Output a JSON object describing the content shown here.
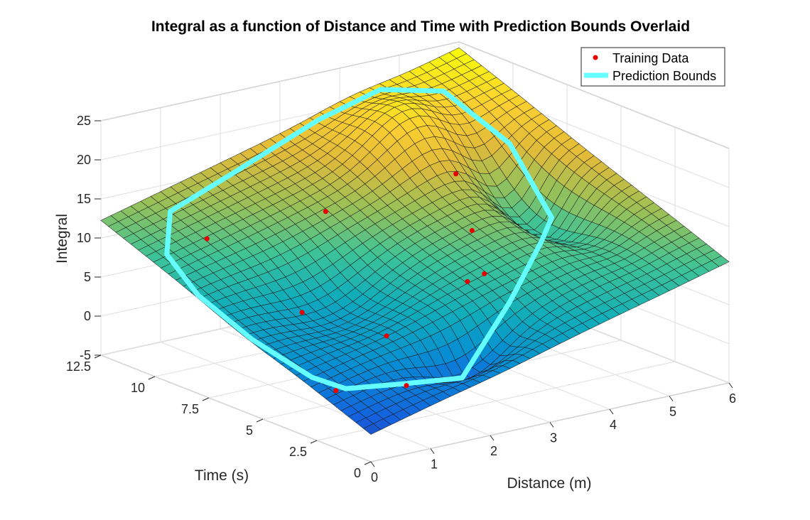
{
  "chart_data": {
    "type": "surface",
    "title": "Integral as a function of Distance and Time with Prediction Bounds Overlaid",
    "xlabel": "Distance (m)",
    "ylabel": "Time (s)",
    "zlabel": "Integral",
    "xlim": [
      0,
      6
    ],
    "ylim": [
      0,
      12.5
    ],
    "zlim": [
      -5,
      25
    ],
    "x_ticks": [
      "0",
      "1",
      "2",
      "3",
      "4",
      "5",
      "6"
    ],
    "y_ticks": [
      "0",
      "2.5",
      "5",
      "7.5",
      "10",
      "12.5"
    ],
    "z_ticks": [
      "-5",
      "0",
      "5",
      "10",
      "15",
      "20",
      "25"
    ],
    "grid": true,
    "colormap": "parula",
    "legend": {
      "placement": "top-right",
      "items": [
        {
          "label": "Training Data",
          "color": "#e60000",
          "kind": "marker"
        },
        {
          "label": "Prediction Bounds",
          "color": "#66ffff",
          "kind": "line"
        }
      ]
    },
    "series": [
      {
        "name": "Training Data",
        "type": "scatter3d",
        "points": [
          {
            "x": 0.5,
            "y": 3.0,
            "z": 0.0
          },
          {
            "x": 1.5,
            "y": 2.5,
            "z": -0.5
          },
          {
            "x": 2.0,
            "y": 4.8,
            "z": 2.5
          },
          {
            "x": 3.5,
            "y": 5.2,
            "z": 6.5
          },
          {
            "x": 4.0,
            "y": 5.8,
            "z": 6.0
          },
          {
            "x": 1.2,
            "y": 6.5,
            "z": 5.0
          },
          {
            "x": 4.3,
            "y": 7.2,
            "z": 9.5
          },
          {
            "x": 4.5,
            "y": 8.5,
            "z": 15.0
          },
          {
            "x": 2.5,
            "y": 9.0,
            "z": 13.0
          },
          {
            "x": 0.8,
            "y": 9.8,
            "z": 11.5
          }
        ]
      },
      {
        "name": "Prediction Bounds",
        "type": "line3d",
        "points": [
          {
            "x": 0.3,
            "y": 2.0
          },
          {
            "x": 1.0,
            "y": 1.3
          },
          {
            "x": 2.0,
            "y": 1.3
          },
          {
            "x": 3.2,
            "y": 2.4
          },
          {
            "x": 4.3,
            "y": 4.0
          },
          {
            "x": 5.2,
            "y": 6.0
          },
          {
            "x": 5.4,
            "y": 8.5
          },
          {
            "x": 5.2,
            "y": 11.0
          },
          {
            "x": 4.5,
            "y": 12.0
          },
          {
            "x": 3.5,
            "y": 12.1
          },
          {
            "x": 2.0,
            "y": 11.8
          },
          {
            "x": 0.8,
            "y": 11.5
          },
          {
            "x": 0.2,
            "y": 10.0
          },
          {
            "x": 0.0,
            "y": 8.0
          },
          {
            "x": 0.0,
            "y": 5.5
          },
          {
            "x": 0.1,
            "y": 3.0
          },
          {
            "x": 0.3,
            "y": 2.0
          }
        ]
      }
    ]
  }
}
